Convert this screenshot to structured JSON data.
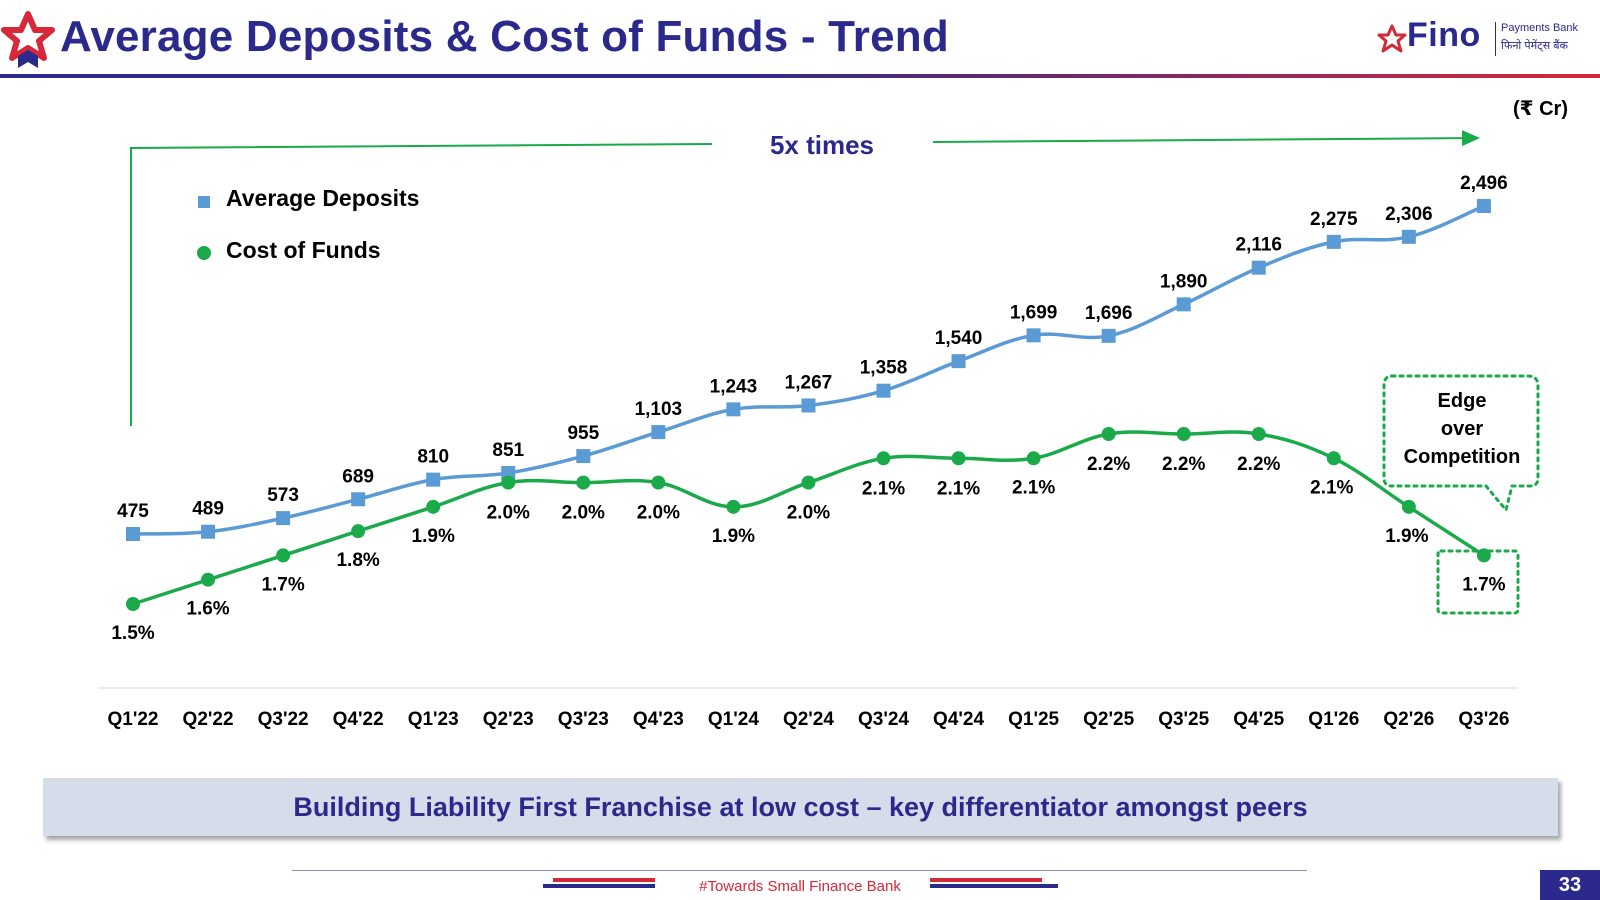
{
  "slide": {
    "title": "Average Deposits & Cost of Funds - Trend",
    "unit": "(₹ Cr)",
    "banner": "Building Liability First Franchise at low cost – key differentiator amongst peers",
    "footer": "#Towards Small Finance Bank",
    "page_number": "33"
  },
  "brand": {
    "name": "Fino",
    "tagline_en": "Payments Bank",
    "tagline_hi": "फिनो पेमेंट्स बैंक",
    "primary_color": "#2b2a8c",
    "accent_color": "#d62839"
  },
  "chart_data": {
    "type": "line",
    "categories": [
      "Q1'22",
      "Q2'22",
      "Q3'22",
      "Q4'22",
      "Q1'23",
      "Q2'23",
      "Q3'23",
      "Q4'23",
      "Q1'24",
      "Q2'24",
      "Q3'24",
      "Q4'24",
      "Q1'25",
      "Q2'25",
      "Q3'25",
      "Q4'25",
      "Q1'26",
      "Q2'26",
      "Q3'26"
    ],
    "series": [
      {
        "name": "Average Deposits",
        "marker": "square",
        "color": "#5b9bd5",
        "values": [
          475,
          489,
          573,
          689,
          810,
          851,
          955,
          1103,
          1243,
          1267,
          1358,
          1540,
          1699,
          1696,
          1890,
          2116,
          2275,
          2306,
          2496
        ],
        "labels": [
          "475",
          "489",
          "573",
          "689",
          "810",
          "851",
          "955",
          "1,103",
          "1,243",
          "1,267",
          "1,358",
          "1,540",
          "1,699",
          "1,696",
          "1,890",
          "2,116",
          "2,275",
          "2,306",
          "2,496"
        ]
      },
      {
        "name": "Cost of Funds",
        "marker": "circle",
        "color": "#1aaa4a",
        "values": [
          1.5,
          1.6,
          1.7,
          1.8,
          1.9,
          2.0,
          2.0,
          2.0,
          1.9,
          2.0,
          2.1,
          2.1,
          2.1,
          2.2,
          2.2,
          2.2,
          2.1,
          1.9,
          1.7
        ],
        "labels": [
          "1.5%",
          "1.6%",
          "1.7%",
          "1.8%",
          "1.9%",
          "2.0%",
          "2.0%",
          "2.0%",
          "1.9%",
          "2.0%",
          "2.1%",
          "2.1%",
          "2.1%",
          "2.2%",
          "2.2%",
          "2.2%",
          "2.1%",
          "1.9%",
          "1.7%"
        ]
      }
    ],
    "legend_position": "top-left",
    "growth_annotation": "5x times",
    "callout_lines": [
      "Edge",
      "over",
      "Competition"
    ]
  }
}
